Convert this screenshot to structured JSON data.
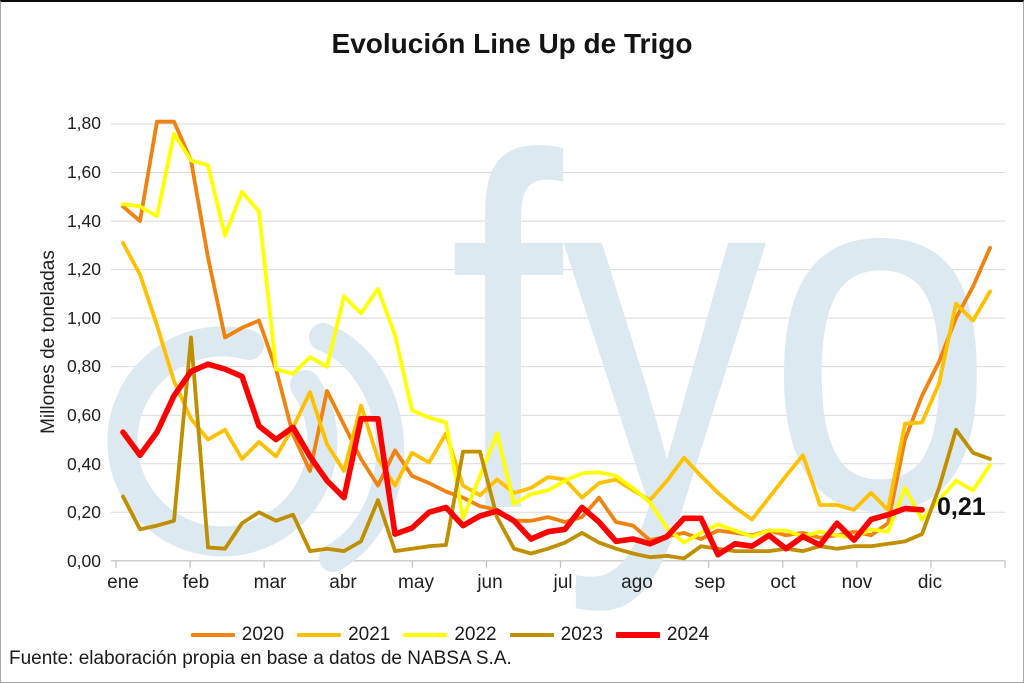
{
  "title": "Evolución Line Up de Trigo",
  "watermark": {
    "text": "fyo",
    "color": "#DCE9F1"
  },
  "annotation": {
    "text": "0,21"
  },
  "source": "Fuente: elaboración propia en base a datos de NABSA S.A.",
  "y_axis": {
    "label": "Millones de toneladas",
    "tick_labels": [
      "1,80",
      "1,60",
      "1,40",
      "1,20",
      "1,00",
      "0,80",
      "0,60",
      "0,40",
      "0,20",
      "0,00"
    ]
  },
  "x_axis": {
    "months": [
      "ene",
      "feb",
      "mar",
      "abr",
      "may",
      "jun",
      "jul",
      "ago",
      "sep",
      "oct",
      "nov",
      "dic"
    ]
  },
  "legend": {
    "items": [
      {
        "label": "2020",
        "color": "#F0820F",
        "thick": false
      },
      {
        "label": "2021",
        "color": "#FFC000",
        "thick": false
      },
      {
        "label": "2022",
        "color": "#FFFF00",
        "thick": false
      },
      {
        "label": "2023",
        "color": "#BF8F00",
        "thick": false
      },
      {
        "label": "2024",
        "color": "#FE0000",
        "thick": true
      }
    ]
  },
  "colors": {
    "grid": "#D9D9D9",
    "axis": "#BFBFBF",
    "text": "#1F1F1F"
  },
  "chart_data": {
    "type": "line",
    "title": "Evolución Line Up de Trigo",
    "ylabel": "Millones de toneladas",
    "ylim": [
      0,
      1.8
    ],
    "ytick_step": 0.2,
    "x_unit": "weeks (ene–dic)",
    "categories_months": [
      "ene",
      "feb",
      "mar",
      "abr",
      "may",
      "jun",
      "jul",
      "ago",
      "sep",
      "oct",
      "nov",
      "dic"
    ],
    "grid": true,
    "legend_position": "bottom",
    "end_label": {
      "series": "2024",
      "value": 0.21,
      "text": "0,21"
    },
    "series": [
      {
        "name": "2020",
        "color": "#F0820F",
        "line_width": 3.8,
        "values": [
          1.46,
          1.4,
          1.81,
          1.81,
          1.65,
          1.25,
          0.92,
          0.96,
          0.99,
          0.79,
          0.52,
          0.37,
          0.7,
          0.56,
          0.42,
          0.31,
          0.455,
          0.35,
          0.32,
          0.285,
          0.26,
          0.225,
          0.21,
          0.165,
          0.165,
          0.18,
          0.16,
          0.18,
          0.26,
          0.16,
          0.145,
          0.085,
          0.1,
          0.115,
          0.09,
          0.125,
          0.115,
          0.105,
          0.125,
          0.105,
          0.115,
          0.095,
          0.105,
          0.12,
          0.105,
          0.155,
          0.5,
          0.68,
          0.82,
          1.0,
          1.13,
          1.29
        ]
      },
      {
        "name": "2021",
        "color": "#FFC000",
        "line_width": 3.8,
        "values": [
          1.31,
          1.18,
          0.97,
          0.74,
          0.585,
          0.5,
          0.54,
          0.42,
          0.49,
          0.43,
          0.55,
          0.695,
          0.48,
          0.37,
          0.64,
          0.42,
          0.31,
          0.445,
          0.405,
          0.525,
          0.31,
          0.27,
          0.335,
          0.28,
          0.3,
          0.345,
          0.335,
          0.26,
          0.32,
          0.335,
          0.29,
          0.25,
          0.33,
          0.425,
          0.35,
          0.28,
          0.22,
          0.17,
          0.26,
          0.35,
          0.435,
          0.23,
          0.23,
          0.21,
          0.28,
          0.21,
          0.565,
          0.57,
          0.73,
          1.06,
          0.99,
          1.11
        ]
      },
      {
        "name": "2022",
        "color": "#FFFF00",
        "line_width": 3.8,
        "values": [
          1.47,
          1.46,
          1.42,
          1.76,
          1.65,
          1.63,
          1.34,
          1.52,
          1.44,
          0.79,
          0.77,
          0.84,
          0.8,
          1.09,
          1.02,
          1.12,
          0.93,
          0.62,
          0.59,
          0.57,
          0.175,
          0.35,
          0.525,
          0.235,
          0.275,
          0.29,
          0.33,
          0.36,
          0.365,
          0.35,
          0.3,
          0.24,
          0.135,
          0.075,
          0.115,
          0.15,
          0.125,
          0.1,
          0.125,
          0.125,
          0.1,
          0.12,
          0.105,
          0.095,
          0.13,
          0.12,
          0.3,
          0.17,
          0.25,
          0.33,
          0.29,
          0.395
        ]
      },
      {
        "name": "2023",
        "color": "#BF8F00",
        "line_width": 3.8,
        "values": [
          0.265,
          0.13,
          0.145,
          0.165,
          0.92,
          0.055,
          0.05,
          0.155,
          0.2,
          0.165,
          0.19,
          0.04,
          0.05,
          0.04,
          0.08,
          0.25,
          0.04,
          0.05,
          0.06,
          0.065,
          0.45,
          0.45,
          0.18,
          0.05,
          0.03,
          0.05,
          0.075,
          0.115,
          0.075,
          0.05,
          0.03,
          0.015,
          0.02,
          0.01,
          0.06,
          0.05,
          0.04,
          0.04,
          0.04,
          0.05,
          0.04,
          0.06,
          0.05,
          0.06,
          0.06,
          0.07,
          0.08,
          0.11,
          0.3,
          0.54,
          0.445,
          0.42
        ]
      },
      {
        "name": "2024",
        "color": "#FE0000",
        "line_width": 5.6,
        "values": [
          0.53,
          0.435,
          0.53,
          0.68,
          0.78,
          0.81,
          0.79,
          0.76,
          0.555,
          0.5,
          0.55,
          0.43,
          0.33,
          0.26,
          0.585,
          0.585,
          0.11,
          0.135,
          0.2,
          0.22,
          0.145,
          0.185,
          0.205,
          0.165,
          0.09,
          0.12,
          0.13,
          0.22,
          0.16,
          0.08,
          0.09,
          0.07,
          0.1,
          0.175,
          0.175,
          0.025,
          0.07,
          0.06,
          0.105,
          0.05,
          0.1,
          0.065,
          0.155,
          0.085,
          0.17,
          0.19,
          0.215,
          0.21
        ]
      }
    ]
  }
}
